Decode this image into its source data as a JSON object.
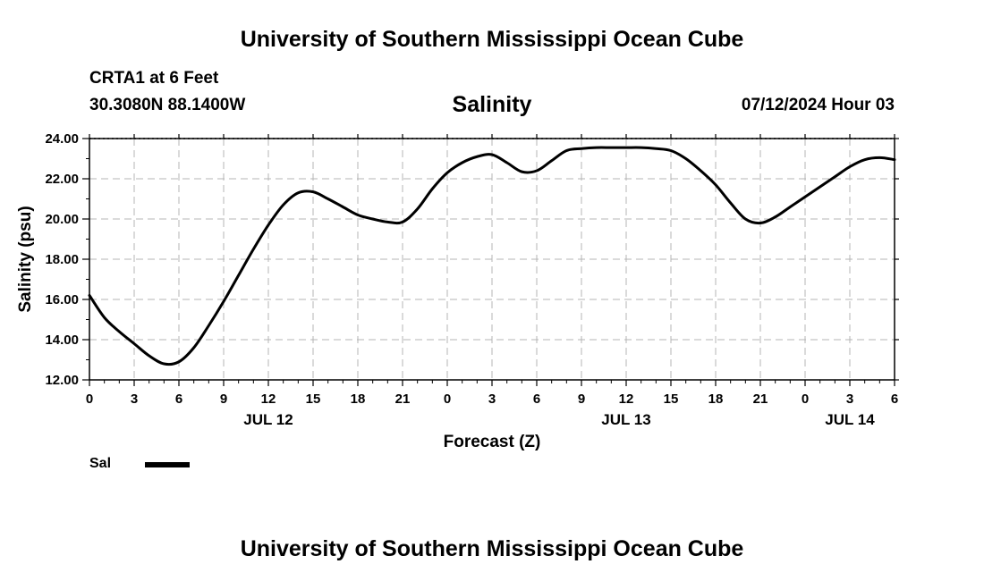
{
  "page_title": "University of Southern Mississippi Ocean Cube",
  "footer_title": "University of Southern Mississippi Ocean Cube",
  "station": {
    "name": "CRTA1 at 6 Feet",
    "coordinates": "30.3080N  88.1400W"
  },
  "timestamp": "07/12/2024 Hour 03",
  "legend": {
    "label": "Sal"
  },
  "colors": {
    "line": "#000000",
    "grid": "#b4b4b4",
    "background": "#ffffff"
  },
  "chart_data": {
    "type": "line",
    "title": "Salinity",
    "xlabel": "Forecast (Z)",
    "ylabel": "Salinity (psu)",
    "x_unit": "hours from JUL 12 00Z",
    "xlim": [
      0,
      54
    ],
    "ylim": [
      12,
      24
    ],
    "ytick_values": [
      12,
      14,
      16,
      18,
      20,
      22,
      24
    ],
    "ytick_labels": [
      "12.00",
      "14.00",
      "16.00",
      "18.00",
      "20.00",
      "22.00",
      "24.00"
    ],
    "xtick_values": [
      0,
      3,
      6,
      9,
      12,
      15,
      18,
      21,
      24,
      27,
      30,
      33,
      36,
      39,
      42,
      45,
      48,
      51,
      54
    ],
    "xtick_labels": [
      "0",
      "3",
      "6",
      "9",
      "12",
      "15",
      "18",
      "21",
      "0",
      "3",
      "6",
      "9",
      "12",
      "15",
      "18",
      "21",
      "0",
      "3",
      "6"
    ],
    "date_labels": [
      {
        "x": 12,
        "label": "JUL 12"
      },
      {
        "x": 36,
        "label": "JUL 13"
      },
      {
        "x": 51,
        "label": "JUL 14"
      }
    ],
    "grid": true,
    "series": [
      {
        "name": "Sal",
        "x": [
          0,
          1,
          2,
          3,
          4,
          5,
          6,
          7,
          8,
          9,
          10,
          11,
          12,
          13,
          14,
          15,
          16,
          17,
          18,
          19,
          20,
          21,
          22,
          23,
          24,
          25,
          26,
          27,
          28,
          29,
          30,
          31,
          32,
          33,
          34,
          35,
          36,
          37,
          38,
          39,
          40,
          41,
          42,
          43,
          44,
          45,
          46,
          47,
          48,
          49,
          50,
          51,
          52,
          53,
          54
        ],
        "values": [
          16.2,
          15.1,
          14.4,
          13.8,
          13.2,
          12.8,
          12.9,
          13.6,
          14.7,
          15.9,
          17.2,
          18.5,
          19.7,
          20.7,
          21.3,
          21.35,
          21.0,
          20.6,
          20.2,
          20.0,
          19.85,
          19.85,
          20.5,
          21.5,
          22.3,
          22.8,
          23.1,
          23.2,
          22.8,
          22.35,
          22.4,
          22.9,
          23.4,
          23.5,
          23.55,
          23.55,
          23.55,
          23.55,
          23.5,
          23.4,
          23.0,
          22.4,
          21.7,
          20.8,
          20.0,
          19.8,
          20.1,
          20.6,
          21.1,
          21.6,
          22.1,
          22.6,
          22.95,
          23.05,
          22.95
        ]
      }
    ]
  }
}
